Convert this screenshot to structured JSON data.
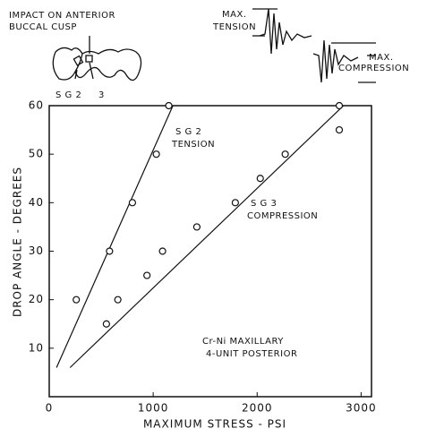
{
  "chart_data": {
    "type": "scatter",
    "x_label": "MAXIMUM  STRESS - PSI",
    "y_label": "DROP ANGLE - DEGREES",
    "xlim": [
      0,
      3100
    ],
    "ylim": [
      0,
      60
    ],
    "xticks": [
      0,
      1000,
      2000,
      3000
    ],
    "yticks": [
      10,
      20,
      30,
      40,
      50,
      60
    ],
    "color": "#111111",
    "series": [
      {
        "x": [
          260,
          580,
          800,
          1030,
          1150
        ],
        "values": [
          20,
          30,
          40,
          50,
          60
        ],
        "fit": {
          "x": [
            70,
            1190
          ],
          "y": [
            6,
            60
          ]
        },
        "label": [
          "S G 2",
          "TENSION"
        ]
      },
      {
        "x": [
          550,
          660,
          940,
          1090,
          1420,
          1790,
          2030,
          2270,
          2790,
          2790
        ],
        "values": [
          15,
          20,
          25,
          30,
          35,
          40,
          45,
          50,
          55,
          60
        ],
        "fit": {
          "x": [
            200,
            2830
          ],
          "y": [
            6,
            60
          ]
        },
        "label": [
          "S G 3",
          "COMPRESSION"
        ]
      }
    ],
    "annotation": [
      "Cr-Ni  MAXILLARY",
      "4-UNIT POSTERIOR"
    ],
    "diagram": {
      "impact": [
        "IMPACT ON ANTERIOR",
        "BUCCAL CUSP"
      ],
      "gauges": [
        "S G 2",
        "3"
      ],
      "max_tension": [
        "MAX.",
        "TENSION"
      ],
      "max_compression": [
        "MAX.",
        "COMPRESSION"
      ]
    }
  }
}
